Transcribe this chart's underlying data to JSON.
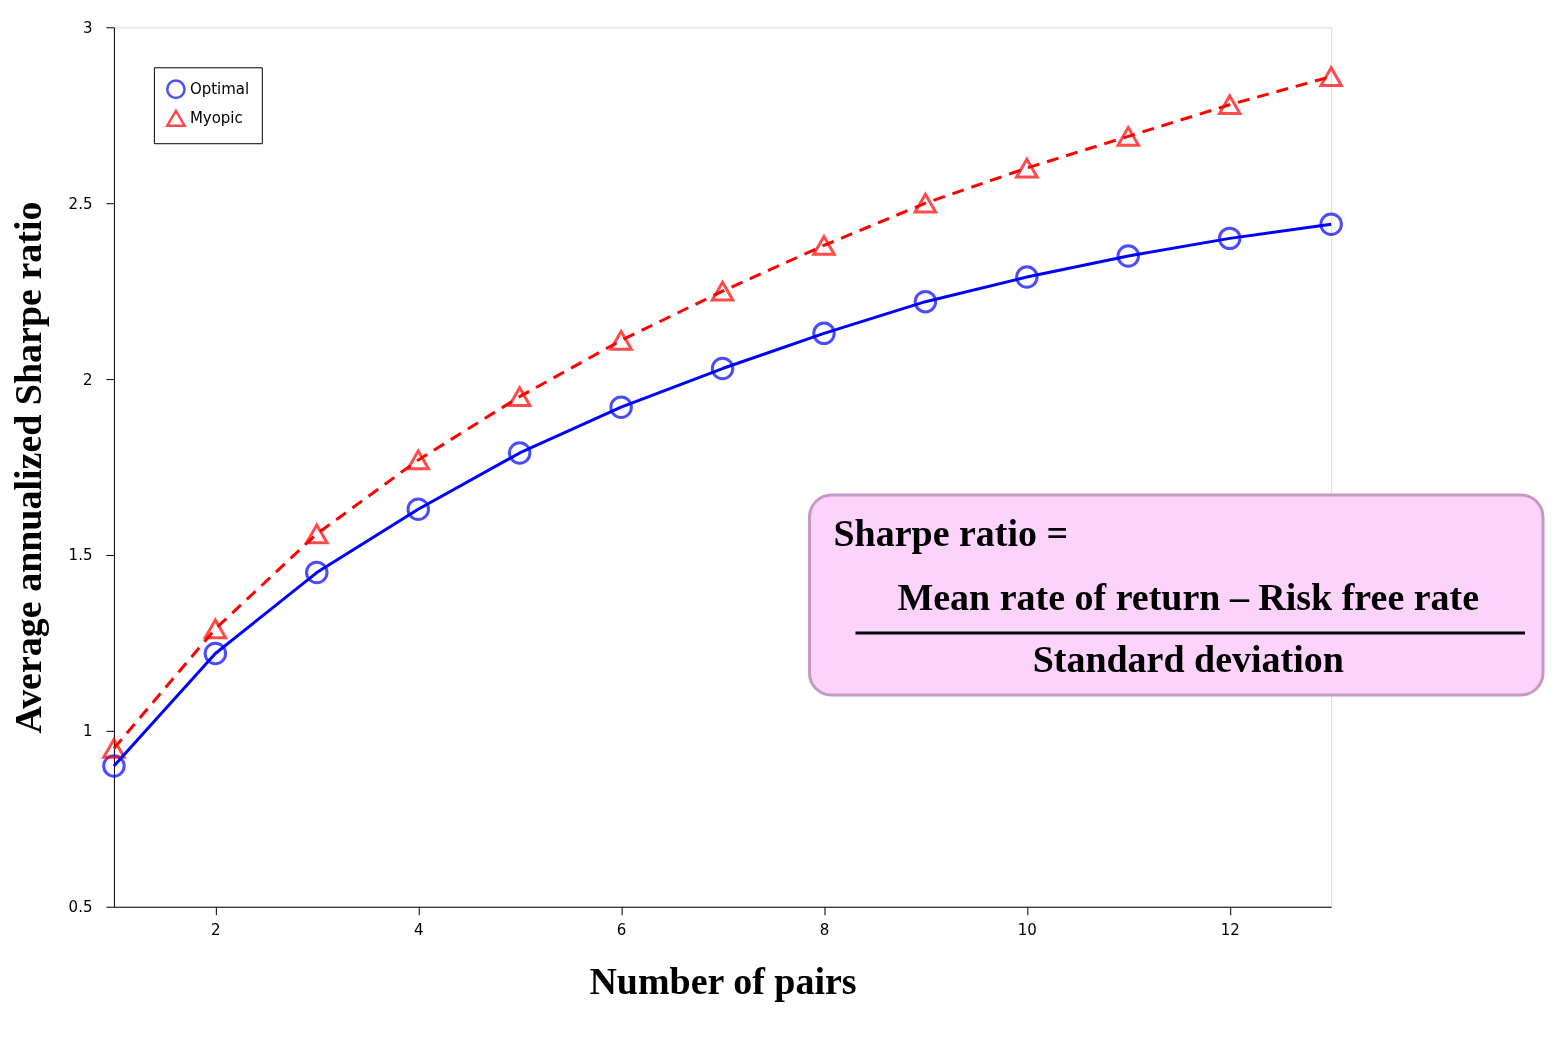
{
  "chart_data": {
    "type": "line",
    "xlabel": "Number of pairs",
    "ylabel": "Average annualized Sharpe ratio",
    "x": [
      1,
      2,
      3,
      4,
      5,
      6,
      7,
      8,
      9,
      10,
      11,
      12,
      13
    ],
    "series": [
      {
        "name": "Optimal",
        "color": "#0000ff",
        "marker": "circle",
        "line_style": "solid",
        "values": [
          0.9,
          1.22,
          1.45,
          1.63,
          1.79,
          1.92,
          2.03,
          2.13,
          2.22,
          2.29,
          2.35,
          2.4,
          2.44
        ]
      },
      {
        "name": "Myopic",
        "color": "#ff0000",
        "marker": "triangle",
        "line_style": "dashed",
        "values": [
          0.95,
          1.29,
          1.56,
          1.77,
          1.95,
          2.11,
          2.25,
          2.38,
          2.5,
          2.6,
          2.69,
          2.78,
          2.86
        ]
      }
    ],
    "xlim": [
      1,
      13
    ],
    "xticks": [
      2,
      4,
      6,
      8,
      10,
      12
    ],
    "ylim": [
      0.5,
      3
    ],
    "yticks": [
      0.5,
      1,
      1.5,
      2,
      2.5,
      3
    ],
    "grid": false,
    "legend": "top left",
    "annotations": [
      "Sharpe ratio =",
      "Mean rate of return – Risk free rate",
      "Standard deviation"
    ]
  }
}
